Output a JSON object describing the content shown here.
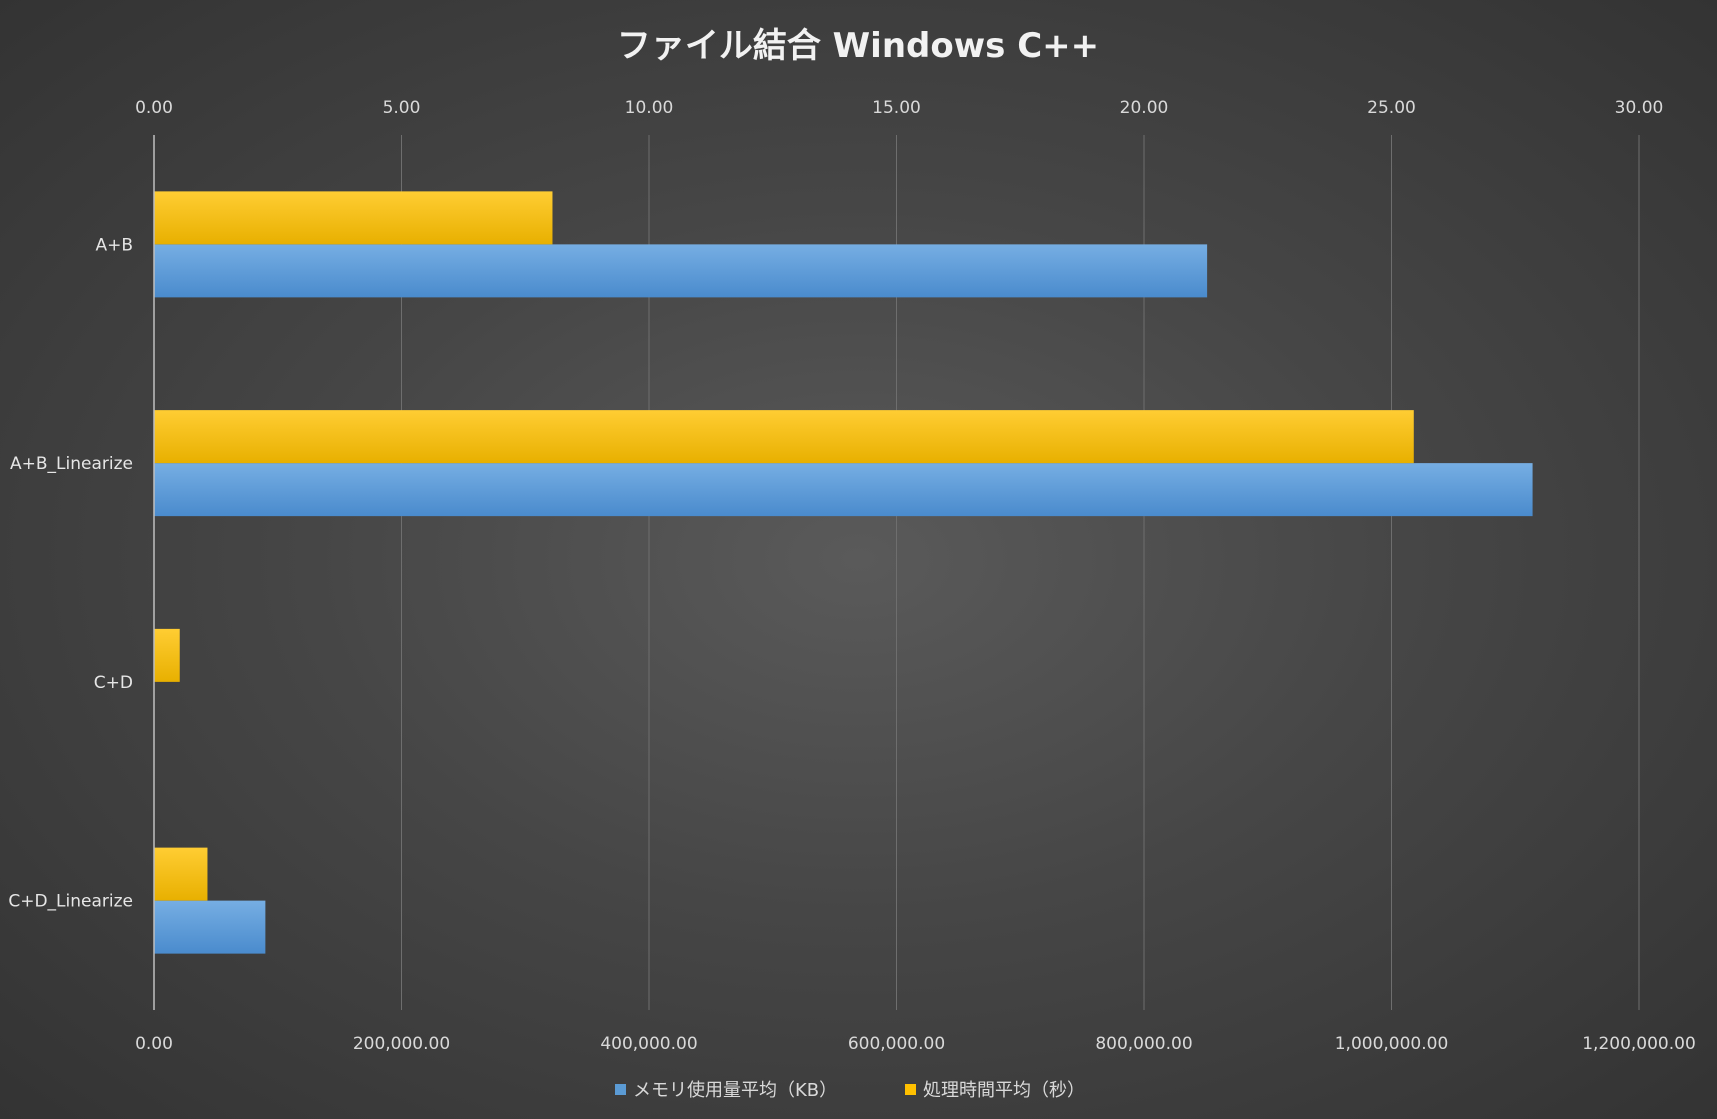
{
  "chart_data": {
    "type": "bar",
    "orientation": "horizontal",
    "title": "ファイル結合 Windows C++",
    "categories": [
      "A+B",
      "A+B_Linearize",
      "C+D",
      "C+D_Linearize"
    ],
    "series": [
      {
        "name": "メモリ使用量平均（KB）",
        "axis": "bottom",
        "color": "#5b9bd5",
        "values": [
          851000,
          1114000,
          0,
          90000
        ]
      },
      {
        "name": "処理時間平均（秒）",
        "axis": "top",
        "color": "#ffc000",
        "values": [
          8.05,
          25.45,
          0.52,
          1.08
        ]
      }
    ],
    "x_primary": {
      "position": "bottom",
      "range": [
        0,
        1200000
      ],
      "ticks": [
        "0.00",
        "200,000.00",
        "400,000.00",
        "600,000.00",
        "800,000.00",
        "1,000,000.00",
        "1,200,000.00"
      ]
    },
    "x_secondary": {
      "position": "top",
      "range": [
        0,
        30
      ],
      "ticks": [
        "0.00",
        "5.00",
        "10.00",
        "15.00",
        "20.00",
        "25.00",
        "30.00"
      ]
    },
    "grid": true,
    "legend": "bottom"
  }
}
